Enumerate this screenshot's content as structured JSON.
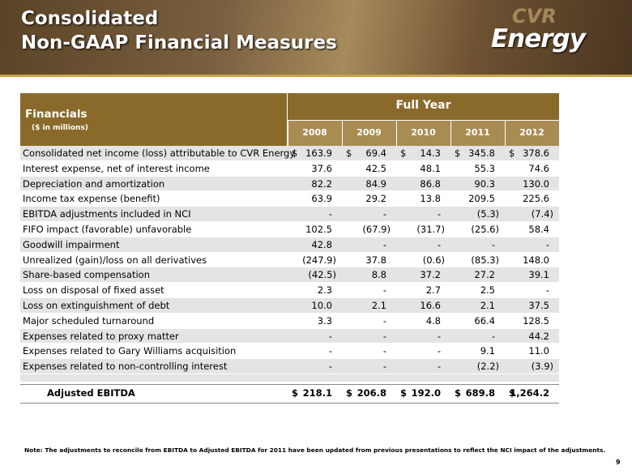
{
  "header": {
    "title_lines": [
      "Consolidated",
      "Non-GAAP Financial Measures"
    ],
    "logo": [
      "CVR",
      "Energy"
    ]
  },
  "table": {
    "title": "Financials",
    "subtitle": "($ in millions)",
    "group_header": "Full Year",
    "years": [
      "2008",
      "2009",
      "2010",
      "2011",
      "2012"
    ],
    "currency": "$",
    "rows": [
      {
        "label": "Consolidated net income (loss) attributable to CVR Energy",
        "values": [
          "163.9",
          "69.4",
          "14.3",
          "345.8",
          "378.6"
        ],
        "currency": "$"
      },
      {
        "label": "Interest expense, net of interest income",
        "values": [
          "37.6",
          "42.5",
          "48.1",
          "55.3",
          "74.6"
        ]
      },
      {
        "label": "Depreciation and amortization",
        "values": [
          "82.2",
          "84.9",
          "86.8",
          "90.3",
          "130.0"
        ]
      },
      {
        "label": "Income tax expense (benefit)",
        "values": [
          "63.9",
          "29.2",
          "13.8",
          "209.5",
          "225.6"
        ]
      },
      {
        "label": "EBITDA adjustments included in NCI",
        "values": [
          "-",
          "-",
          "-",
          "(5.3)",
          "(7.4)"
        ]
      },
      {
        "label": "FIFO impact (favorable) unfavorable",
        "values": [
          "102.5",
          "(67.9)",
          "(31.7)",
          "(25.6)",
          "58.4"
        ]
      },
      {
        "label": "Goodwill impairment",
        "values": [
          "42.8",
          "-",
          "-",
          "-",
          "-"
        ]
      },
      {
        "label": "Unrealized (gain)/loss on all derivatives",
        "values": [
          "(247.9)",
          "37.8",
          "(0.6)",
          "(85.3)",
          "148.0"
        ]
      },
      {
        "label": "Share-based compensation",
        "values": [
          "(42.5)",
          "8.8",
          "37.2",
          "27.2",
          "39.1"
        ]
      },
      {
        "label": "Loss on disposal of fixed asset",
        "values": [
          "2.3",
          "-",
          "2.7",
          "2.5",
          "-"
        ]
      },
      {
        "label": "Loss on extinguishment of debt",
        "values": [
          "10.0",
          "2.1",
          "16.6",
          "2.1",
          "37.5"
        ]
      },
      {
        "label": "Major scheduled turnaround",
        "values": [
          "3.3",
          "-",
          "4.8",
          "66.4",
          "128.5"
        ]
      },
      {
        "label": "Expenses related to proxy matter",
        "values": [
          "-",
          "-",
          "-",
          "-",
          "44.2"
        ]
      },
      {
        "label": "Expenses related to Gary Williams acquisition",
        "values": [
          "-",
          "-",
          "-",
          "9.1",
          "11.0"
        ]
      },
      {
        "label": "Expenses related to non-controlling interest",
        "values": [
          "-",
          "-",
          "-",
          "(2.2)",
          "(3.9)"
        ]
      }
    ],
    "total": {
      "label": "Adjusted EBITDA",
      "values": [
        "218.1",
        "206.8",
        "192.0",
        "689.8",
        "1,264.2"
      ],
      "currency": "$"
    }
  },
  "note": "Note: The adjustments to reconcile from EBITDA to Adjusted EBITDA for 2011 have been updated from previous presentations to reflect the NCI impact of the adjustments.",
  "page_number": "9"
}
